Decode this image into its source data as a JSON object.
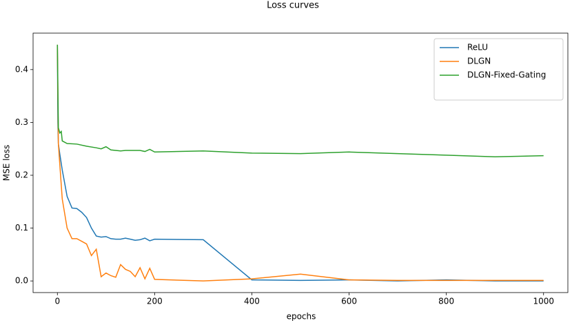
{
  "chart_data": {
    "type": "line",
    "title": "Loss curves",
    "x_label": "epochs",
    "y_label": "MSE loss",
    "xlim": [
      -50,
      1050
    ],
    "xticks": [
      0,
      200,
      400,
      600,
      800,
      1000
    ],
    "ylim": [
      -0.022,
      0.469
    ],
    "yticks": [
      {
        "value": 0,
        "label": "0.0"
      },
      0.1,
      0.2,
      0.3,
      0.4
    ],
    "grid": false,
    "legend": "upper right",
    "series": [
      {
        "name": "ReLU",
        "color": "#1f77b4",
        "x": [
          0,
          1,
          2,
          5,
          10,
          20,
          30,
          40,
          50,
          60,
          70,
          80,
          90,
          100,
          110,
          120,
          130,
          140,
          150,
          160,
          170,
          180,
          190,
          200,
          300,
          400,
          500,
          600,
          700,
          800,
          900,
          1000
        ],
        "values": [
          0.447,
          0.3,
          0.26,
          0.24,
          0.21,
          0.16,
          0.138,
          0.137,
          0.13,
          0.12,
          0.1,
          0.085,
          0.083,
          0.084,
          0.08,
          0.079,
          0.079,
          0.081,
          0.079,
          0.077,
          0.078,
          0.081,
          0.076,
          0.079,
          0.078,
          0.002,
          0.001,
          0.002,
          0.0,
          0.002,
          0.0,
          0.0
        ]
      },
      {
        "name": "DLGN",
        "color": "#ff7f0e",
        "x": [
          0,
          2,
          5,
          10,
          20,
          30,
          40,
          50,
          60,
          70,
          80,
          90,
          100,
          110,
          120,
          130,
          140,
          150,
          160,
          170,
          180,
          190,
          200,
          300,
          400,
          500,
          600,
          700,
          800,
          900,
          1000
        ],
        "values": [
          0.447,
          0.26,
          0.22,
          0.155,
          0.1,
          0.08,
          0.08,
          0.075,
          0.07,
          0.048,
          0.06,
          0.008,
          0.015,
          0.01,
          0.007,
          0.031,
          0.022,
          0.018,
          0.008,
          0.025,
          0.004,
          0.024,
          0.003,
          0.0,
          0.004,
          0.013,
          0.002,
          0.001,
          0.001,
          0.001,
          0.001
        ]
      },
      {
        "name": "DLGN-Fixed-Gating",
        "color": "#2ca02c",
        "x": [
          0,
          2,
          5,
          8,
          10,
          20,
          40,
          60,
          80,
          90,
          100,
          110,
          130,
          140,
          170,
          180,
          190,
          200,
          300,
          400,
          500,
          600,
          700,
          800,
          900,
          1000
        ],
        "values": [
          0.447,
          0.29,
          0.28,
          0.283,
          0.265,
          0.26,
          0.259,
          0.255,
          0.252,
          0.25,
          0.254,
          0.248,
          0.246,
          0.247,
          0.247,
          0.245,
          0.249,
          0.244,
          0.246,
          0.242,
          0.241,
          0.244,
          0.241,
          0.238,
          0.235,
          0.237
        ]
      }
    ]
  }
}
